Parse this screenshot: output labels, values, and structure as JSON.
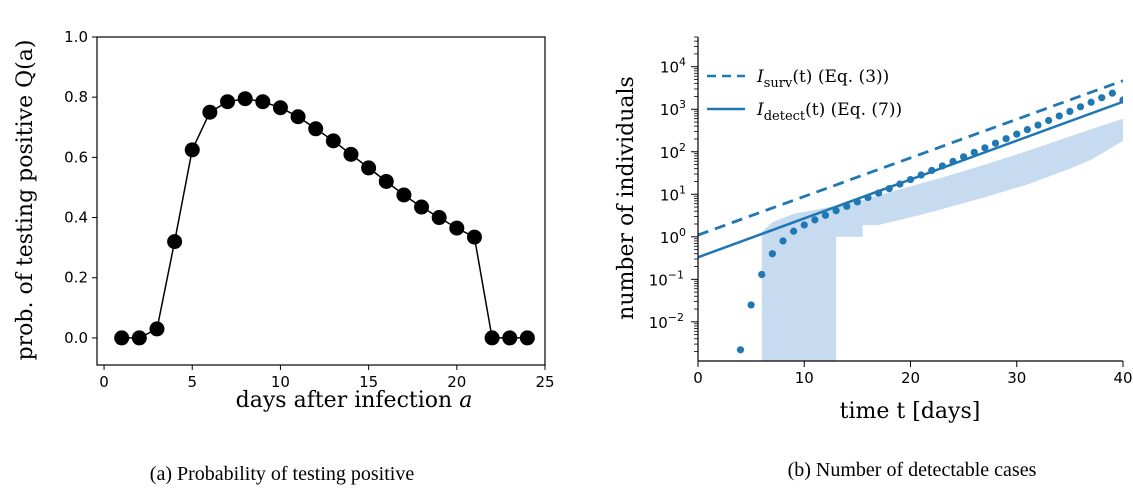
{
  "chart_data": [
    {
      "type": "scatter",
      "caption": "(a) Probability of testing positive",
      "xlabel": "days after infection",
      "xlabel_var": "a",
      "ylabel": "prob. of testing positive Q(a)",
      "xlim": [
        -0.4,
        25
      ],
      "ylim": [
        -0.09,
        1.0
      ],
      "xticks": [
        "0",
        "5",
        "10",
        "15",
        "20",
        "25"
      ],
      "yticks": [
        "0.0",
        "0.2",
        "0.4",
        "0.6",
        "0.8",
        "1.0"
      ],
      "series": [
        {
          "x": [
            1,
            2,
            3,
            4,
            5,
            6,
            7,
            8,
            9,
            10,
            11,
            12,
            13,
            14,
            15,
            16,
            17,
            18,
            19,
            20,
            21,
            22,
            23,
            24
          ],
          "y": [
            0.0,
            0.0,
            0.03,
            0.32,
            0.625,
            0.75,
            0.785,
            0.795,
            0.785,
            0.765,
            0.735,
            0.695,
            0.655,
            0.61,
            0.565,
            0.52,
            0.475,
            0.435,
            0.4,
            0.365,
            0.335,
            0.0,
            0.0,
            0.0
          ],
          "color": "#000000",
          "connected": true
        }
      ],
      "grid": false
    },
    {
      "type": "line",
      "caption": "(b) Number of detectable cases",
      "xlabel": "time t [days]",
      "ylabel": "number of individuals",
      "yscale": "log",
      "xlim": [
        0,
        40
      ],
      "ylim": [
        0.0012,
        50000
      ],
      "xticks": [
        "0",
        "10",
        "20",
        "30",
        "40"
      ],
      "yticks": [
        {
          "base": "10",
          "exp": "4"
        },
        {
          "base": "10",
          "exp": "3"
        },
        {
          "base": "10",
          "exp": "2"
        },
        {
          "base": "10",
          "exp": "1"
        },
        {
          "base": "10",
          "exp": "0"
        },
        {
          "base": "10",
          "exp": "−1"
        },
        {
          "base": "10",
          "exp": "−2"
        }
      ],
      "legend_position": "top-left",
      "series": [
        {
          "name": "I_surv(t) (Eq. (3))",
          "legend_main": "I",
          "legend_sub": "surv",
          "legend_rest": "(t) (Eq. (3))",
          "style": "dashed",
          "color": "#1f77b4",
          "x": [
            0,
            40
          ],
          "y": [
            1.1,
            4700
          ]
        },
        {
          "name": "I_detect(t) (Eq. (7))",
          "legend_main": "I",
          "legend_sub": "detect",
          "legend_rest": "(t) (Eq. (7))",
          "style": "solid",
          "color": "#1f77b4",
          "x": [
            0,
            40
          ],
          "y": [
            0.33,
            1500
          ]
        },
        {
          "style": "points",
          "color": "#1f77b4",
          "x": [
            4,
            5,
            6,
            7,
            8,
            9,
            10,
            11,
            12,
            13,
            14,
            15,
            16,
            17,
            18,
            19,
            20,
            21,
            22,
            23,
            24,
            25,
            26,
            27,
            28,
            29,
            30,
            31,
            32,
            33,
            34,
            35,
            36,
            37,
            38,
            39,
            40
          ],
          "y": [
            0.0022,
            0.025,
            0.13,
            0.4,
            0.8,
            1.35,
            1.9,
            2.5,
            3.2,
            4.1,
            5.2,
            6.6,
            8.4,
            10.7,
            13.6,
            17.4,
            22.2,
            28.4,
            36.3,
            46.4,
            59.3,
            75.9,
            97,
            124,
            159,
            203,
            260,
            332,
            425,
            544,
            696,
            890,
            1140,
            1460,
            1870,
            2390,
            1650
          ]
        },
        {
          "style": "band",
          "color": "#c6dbef",
          "x": [
            6,
            6,
            7,
            9,
            11,
            12,
            13,
            13,
            15,
            15.5,
            15.5,
            17,
            19,
            21,
            23,
            25,
            27,
            29,
            31,
            33,
            35,
            37,
            40
          ],
          "upper": [
            1.3,
            1.3,
            2.2,
            3.5,
            4.3,
            4.8,
            5.3,
            5.3,
            6.8,
            7.2,
            7.2,
            9.5,
            13,
            18,
            25,
            35,
            50,
            72,
            105,
            155,
            230,
            340,
            600
          ],
          "lower": [
            0.0012,
            0.0012,
            0.0012,
            0.0012,
            0.0012,
            0.0012,
            0.0012,
            1.0,
            1.0,
            1.0,
            1.9,
            1.9,
            2.5,
            3.3,
            4.5,
            6.2,
            8.5,
            12,
            17,
            26,
            40,
            65,
            180
          ]
        }
      ],
      "grid": false
    }
  ]
}
